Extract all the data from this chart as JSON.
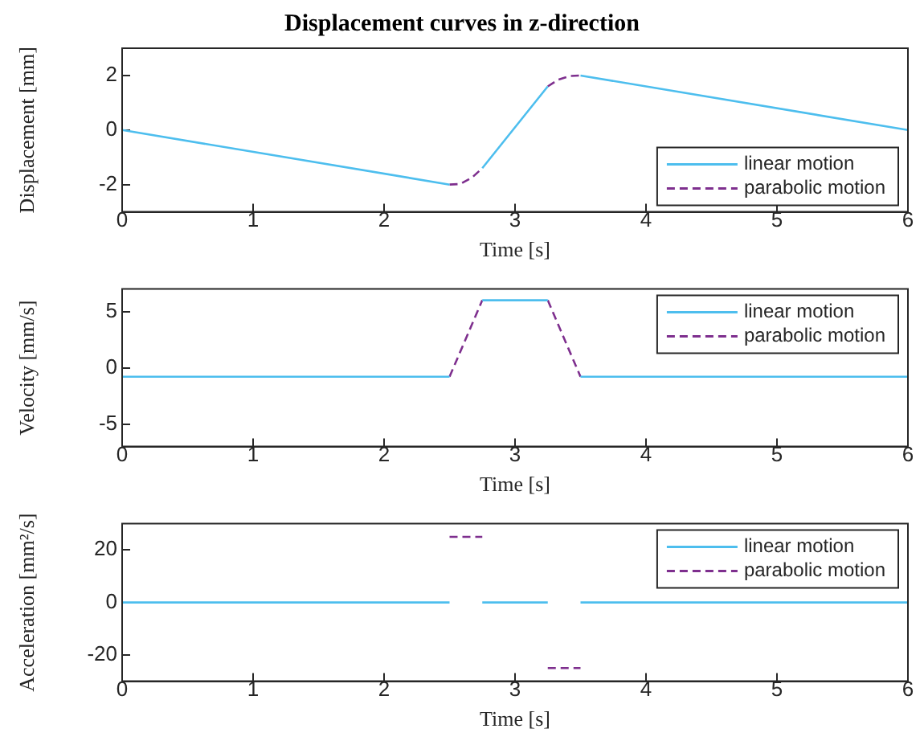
{
  "chart_data": [
    {
      "type": "line",
      "title": "Displacement curves in z-direction",
      "xlabel": "Time [s]",
      "ylabel": "Displacement [mm]",
      "xlim": [
        0,
        6
      ],
      "xticks": [
        0,
        1,
        2,
        3,
        4,
        5,
        6
      ],
      "ylim": [
        -3,
        3
      ],
      "yticks": [
        -2,
        0,
        2
      ],
      "legend": "bottom right",
      "grid": false,
      "series": [
        {
          "name": "linear motion",
          "color": "#4dbeee",
          "line_style": "solid",
          "x": [
            0,
            2.5,
            2.6,
            2.75,
            3.25,
            3.4,
            3.5,
            6
          ],
          "values": [
            0,
            -2,
            null,
            -1.4,
            1.6,
            null,
            2,
            0
          ]
        },
        {
          "name": "parabolic motion",
          "color": "#7e2f8e",
          "line_style": "dashed",
          "x": [
            2.5,
            2.58,
            2.67,
            2.75,
            3.0,
            3.25,
            3.33,
            3.42,
            3.5
          ],
          "values": [
            -2,
            -1.98,
            -1.75,
            -1.4,
            null,
            1.6,
            1.85,
            1.98,
            2
          ]
        }
      ]
    },
    {
      "type": "line",
      "xlabel": "Time [s]",
      "ylabel": "Velocity [mm/s]",
      "xlim": [
        0,
        6
      ],
      "xticks": [
        0,
        1,
        2,
        3,
        4,
        5,
        6
      ],
      "ylim": [
        -7,
        7
      ],
      "yticks": [
        -5,
        0,
        5
      ],
      "legend": "top right",
      "grid": false,
      "series": [
        {
          "name": "linear motion",
          "color": "#4dbeee",
          "line_style": "solid",
          "x": [
            0,
            2.5,
            2.6,
            2.75,
            3.25,
            3.4,
            3.5,
            6
          ],
          "values": [
            -0.8,
            -0.8,
            null,
            6,
            6,
            null,
            -0.8,
            -0.8
          ]
        },
        {
          "name": "parabolic motion",
          "color": "#7e2f8e",
          "line_style": "dashed",
          "x": [
            2.5,
            2.75,
            3.0,
            3.25,
            3.5
          ],
          "values": [
            -0.8,
            6,
            null,
            6,
            -0.8
          ]
        }
      ]
    },
    {
      "type": "line",
      "xlabel": "Time [s]",
      "ylabel": "Acceleration [mm²/s]",
      "xlim": [
        0,
        6
      ],
      "xticks": [
        0,
        1,
        2,
        3,
        4,
        5,
        6
      ],
      "ylim": [
        -30,
        30
      ],
      "yticks": [
        -20,
        0,
        20
      ],
      "legend": "top right",
      "grid": false,
      "series": [
        {
          "name": "linear motion",
          "color": "#4dbeee",
          "line_style": "solid",
          "x": [
            0,
            2.5,
            2.6,
            2.75,
            3.25,
            3.4,
            3.5,
            6
          ],
          "values": [
            0,
            0,
            null,
            0,
            0,
            null,
            0,
            0
          ]
        },
        {
          "name": "parabolic motion",
          "color": "#7e2f8e",
          "line_style": "dashed",
          "x": [
            2.5,
            2.75,
            3.0,
            3.25,
            3.5
          ],
          "values": [
            25,
            25,
            null,
            -25,
            -25
          ]
        }
      ]
    }
  ]
}
